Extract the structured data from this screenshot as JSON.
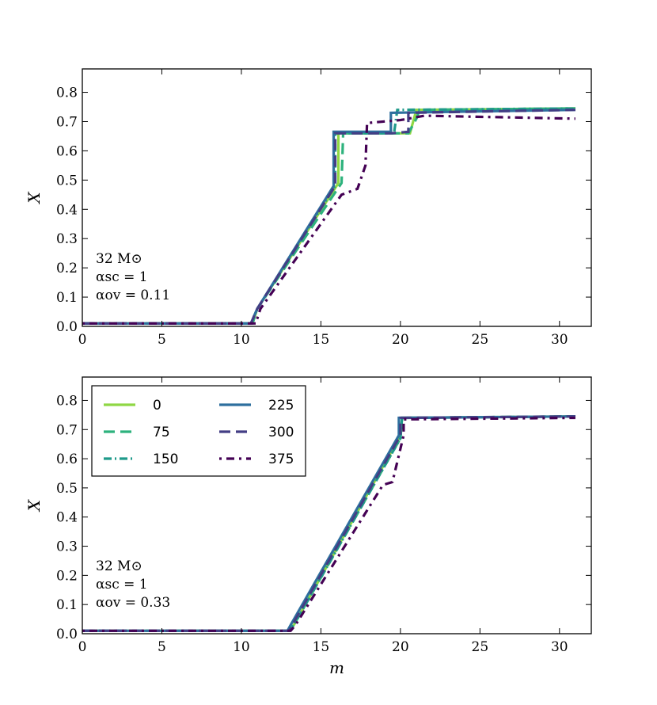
{
  "chart_data": [
    {
      "type": "line",
      "panel": "top",
      "xlabel": "",
      "ylabel": "X",
      "xlim": [
        0,
        32
      ],
      "ylim": [
        0,
        0.88
      ],
      "xticks": [
        0,
        5,
        10,
        15,
        20,
        25,
        30
      ],
      "yticks": [
        0.0,
        0.1,
        0.2,
        0.3,
        0.4,
        0.5,
        0.6,
        0.7,
        0.8
      ],
      "grid": false,
      "annotation": [
        "32 M⊙",
        "αsc = 1",
        "αov = 0.11"
      ],
      "series": [
        {
          "name": "0",
          "color": "#8fd744",
          "style": "solid",
          "points": [
            [
              0,
              0.01
            ],
            [
              10.7,
              0.01
            ],
            [
              11.0,
              0.06
            ],
            [
              16.1,
              0.49
            ],
            [
              16.1,
              0.66
            ],
            [
              20.6,
              0.66
            ],
            [
              21.0,
              0.74
            ],
            [
              31,
              0.745
            ]
          ]
        },
        {
          "name": "75",
          "color": "#2db27d",
          "style": "dashed",
          "points": [
            [
              0,
              0.01
            ],
            [
              10.7,
              0.01
            ],
            [
              11.0,
              0.06
            ],
            [
              16.3,
              0.49
            ],
            [
              16.4,
              0.66
            ],
            [
              20.5,
              0.66
            ],
            [
              21.0,
              0.71
            ],
            [
              21.2,
              0.74
            ],
            [
              31,
              0.745
            ]
          ]
        },
        {
          "name": "150",
          "color": "#1f9a8a",
          "style": "dashdot",
          "points": [
            [
              0,
              0.01
            ],
            [
              10.6,
              0.01
            ],
            [
              11.0,
              0.06
            ],
            [
              15.9,
              0.48
            ],
            [
              15.9,
              0.66
            ],
            [
              19.6,
              0.66
            ],
            [
              19.8,
              0.74
            ],
            [
              31,
              0.745
            ]
          ]
        },
        {
          "name": "225",
          "color": "#2e6f9e",
          "style": "solid",
          "points": [
            [
              0,
              0.01
            ],
            [
              10.6,
              0.01
            ],
            [
              11.0,
              0.06
            ],
            [
              15.8,
              0.48
            ],
            [
              15.8,
              0.665
            ],
            [
              19.4,
              0.665
            ],
            [
              19.4,
              0.73
            ],
            [
              31,
              0.74
            ]
          ]
        },
        {
          "name": "300",
          "color": "#433e85",
          "style": "dashed",
          "points": [
            [
              0,
              0.01
            ],
            [
              10.6,
              0.01
            ],
            [
              11.0,
              0.06
            ],
            [
              15.9,
              0.48
            ],
            [
              15.9,
              0.66
            ],
            [
              19.4,
              0.66
            ],
            [
              20.5,
              0.665
            ],
            [
              20.5,
              0.73
            ],
            [
              31,
              0.74
            ]
          ]
        },
        {
          "name": "375",
          "color": "#440154",
          "style": "dotted-dash",
          "points": [
            [
              0,
              0.01
            ],
            [
              10.9,
              0.01
            ],
            [
              11.2,
              0.06
            ],
            [
              16.3,
              0.45
            ],
            [
              17.3,
              0.47
            ],
            [
              17.8,
              0.55
            ],
            [
              17.9,
              0.695
            ],
            [
              20.0,
              0.705
            ],
            [
              21.5,
              0.72
            ],
            [
              31,
              0.71
            ]
          ]
        }
      ]
    },
    {
      "type": "line",
      "panel": "bottom",
      "xlabel": "m",
      "ylabel": "X",
      "xlim": [
        0,
        32
      ],
      "ylim": [
        0,
        0.88
      ],
      "xticks": [
        0,
        5,
        10,
        15,
        20,
        25,
        30
      ],
      "yticks": [
        0.0,
        0.1,
        0.2,
        0.3,
        0.4,
        0.5,
        0.6,
        0.7,
        0.8
      ],
      "grid": false,
      "legend_position": "top-left",
      "legend_columns": 2,
      "annotation": [
        "32 M⊙",
        "αsc = 1",
        "αov = 0.33"
      ],
      "series": [
        {
          "name": "0",
          "color": "#8fd744",
          "style": "solid",
          "points": [
            [
              0,
              0.01
            ],
            [
              13.0,
              0.01
            ],
            [
              13.3,
              0.03
            ],
            [
              20.0,
              0.68
            ],
            [
              20.1,
              0.74
            ],
            [
              31,
              0.745
            ]
          ]
        },
        {
          "name": "75",
          "color": "#2db27d",
          "style": "dashed",
          "points": [
            [
              0,
              0.01
            ],
            [
              13.0,
              0.01
            ],
            [
              13.3,
              0.03
            ],
            [
              20.0,
              0.67
            ],
            [
              20.1,
              0.74
            ],
            [
              31,
              0.745
            ]
          ]
        },
        {
          "name": "150",
          "color": "#1f9a8a",
          "style": "dashdot",
          "points": [
            [
              0,
              0.01
            ],
            [
              13.0,
              0.01
            ],
            [
              13.3,
              0.03
            ],
            [
              20.0,
              0.67
            ],
            [
              20.1,
              0.74
            ],
            [
              31,
              0.745
            ]
          ]
        },
        {
          "name": "225",
          "color": "#2e6f9e",
          "style": "solid",
          "points": [
            [
              0,
              0.01
            ],
            [
              12.9,
              0.01
            ],
            [
              13.1,
              0.03
            ],
            [
              19.9,
              0.68
            ],
            [
              19.9,
              0.74
            ],
            [
              31,
              0.745
            ]
          ]
        },
        {
          "name": "300",
          "color": "#433e85",
          "style": "dashed",
          "points": [
            [
              0,
              0.01
            ],
            [
              13.0,
              0.01
            ],
            [
              13.2,
              0.03
            ],
            [
              20.0,
              0.68
            ],
            [
              20.0,
              0.74
            ],
            [
              31,
              0.745
            ]
          ]
        },
        {
          "name": "375",
          "color": "#440154",
          "style": "dotted-dash",
          "points": [
            [
              0,
              0.01
            ],
            [
              13.1,
              0.01
            ],
            [
              13.4,
              0.03
            ],
            [
              18.9,
              0.51
            ],
            [
              19.5,
              0.52
            ],
            [
              20.2,
              0.68
            ],
            [
              20.2,
              0.735
            ],
            [
              31,
              0.74
            ]
          ]
        }
      ]
    }
  ]
}
